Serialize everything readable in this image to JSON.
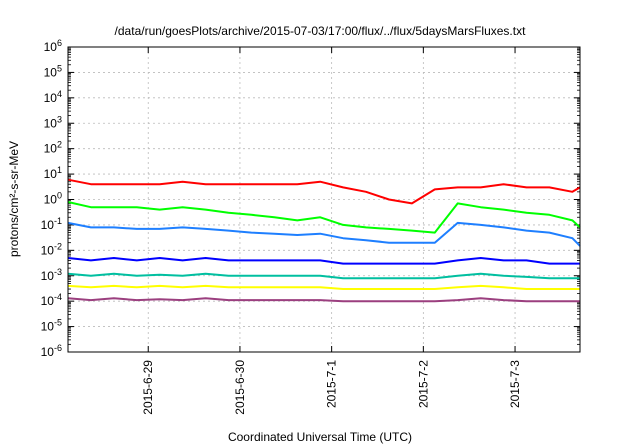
{
  "chart_data": {
    "type": "line",
    "title": "/data/run/goesPlots/archive/2015-07-03/17:00/flux/../flux/5daysMarsFluxes.txt",
    "xlabel": "Coordinated Universal Time (UTC)",
    "ylabel": "protons/cm²-s-sr-MeV",
    "yscale": "log",
    "ylim": [
      1e-06,
      1000000.0
    ],
    "yticks": [
      {
        "value": 1e-06,
        "base": "10",
        "exp": "-6"
      },
      {
        "value": 1e-05,
        "base": "10",
        "exp": "-5"
      },
      {
        "value": 0.0001,
        "base": "10",
        "exp": "-4"
      },
      {
        "value": 0.001,
        "base": "10",
        "exp": "-3"
      },
      {
        "value": 0.01,
        "base": "10",
        "exp": "-2"
      },
      {
        "value": 0.1,
        "base": "10",
        "exp": "-1"
      },
      {
        "value": 1.0,
        "base": "10",
        "exp": "0"
      },
      {
        "value": 10.0,
        "base": "10",
        "exp": "1"
      },
      {
        "value": 100.0,
        "base": "10",
        "exp": "2"
      },
      {
        "value": 1000.0,
        "base": "10",
        "exp": "3"
      },
      {
        "value": 10000.0,
        "base": "10",
        "exp": "4"
      },
      {
        "value": 100000.0,
        "base": "10",
        "exp": "5"
      },
      {
        "value": 1000000.0,
        "base": "10",
        "exp": "6"
      }
    ],
    "xlim": [
      "2015-06-28T03:00",
      "2015-07-03T17:00"
    ],
    "xticks": [
      "2015-6-29",
      "2015-6-30",
      "2015-7-1",
      "2015-7-2",
      "2015-7-3"
    ],
    "grid": true,
    "legend": "none",
    "x": [
      "2015-06-28T03:00",
      "2015-06-28T09:00",
      "2015-06-28T15:00",
      "2015-06-28T21:00",
      "2015-06-29T03:00",
      "2015-06-29T09:00",
      "2015-06-29T15:00",
      "2015-06-29T21:00",
      "2015-06-30T03:00",
      "2015-06-30T09:00",
      "2015-06-30T15:00",
      "2015-06-30T21:00",
      "2015-07-01T03:00",
      "2015-07-01T09:00",
      "2015-07-01T15:00",
      "2015-07-01T21:00",
      "2015-07-02T03:00",
      "2015-07-02T09:00",
      "2015-07-02T15:00",
      "2015-07-02T21:00",
      "2015-07-03T03:00",
      "2015-07-03T09:00",
      "2015-07-03T15:00",
      "2015-07-03T17:00"
    ],
    "series": [
      {
        "color": "#ff0000",
        "values": [
          6,
          4,
          4,
          4,
          4,
          5,
          4,
          4,
          4,
          4,
          4,
          5,
          3,
          2,
          1,
          0.7,
          2.5,
          3,
          3,
          4,
          3,
          3,
          2,
          3
        ]
      },
      {
        "color": "#00ff00",
        "values": [
          0.8,
          0.5,
          0.5,
          0.5,
          0.4,
          0.5,
          0.4,
          0.3,
          0.25,
          0.2,
          0.15,
          0.2,
          0.1,
          0.08,
          0.07,
          0.06,
          0.05,
          0.7,
          0.5,
          0.4,
          0.3,
          0.25,
          0.15,
          0.08
        ]
      },
      {
        "color": "#1e7fff",
        "values": [
          0.12,
          0.08,
          0.08,
          0.07,
          0.07,
          0.08,
          0.07,
          0.06,
          0.05,
          0.045,
          0.04,
          0.045,
          0.03,
          0.025,
          0.02,
          0.02,
          0.02,
          0.12,
          0.1,
          0.08,
          0.06,
          0.05,
          0.03,
          0.015
        ]
      },
      {
        "color": "#0000ff",
        "values": [
          0.005,
          0.004,
          0.005,
          0.004,
          0.005,
          0.004,
          0.005,
          0.004,
          0.004,
          0.004,
          0.004,
          0.004,
          0.003,
          0.003,
          0.003,
          0.003,
          0.003,
          0.004,
          0.005,
          0.004,
          0.004,
          0.003,
          0.003,
          0.003
        ]
      },
      {
        "color": "#00bfa0",
        "values": [
          0.0012,
          0.001,
          0.0012,
          0.001,
          0.0011,
          0.001,
          0.0012,
          0.001,
          0.001,
          0.001,
          0.001,
          0.001,
          0.0008,
          0.0008,
          0.0008,
          0.0008,
          0.0008,
          0.001,
          0.0012,
          0.001,
          0.0009,
          0.0008,
          0.0008,
          0.0008
        ]
      },
      {
        "color": "#ffff00",
        "values": [
          0.0004,
          0.00035,
          0.0004,
          0.00035,
          0.0004,
          0.00035,
          0.0004,
          0.00035,
          0.00035,
          0.00035,
          0.00035,
          0.00035,
          0.0003,
          0.0003,
          0.0003,
          0.0003,
          0.0003,
          0.00035,
          0.0004,
          0.00035,
          0.0003,
          0.0003,
          0.0003,
          0.0003
        ]
      },
      {
        "color": "#9b3f7f",
        "values": [
          0.00013,
          0.00011,
          0.00013,
          0.00011,
          0.00012,
          0.00011,
          0.00013,
          0.00011,
          0.00011,
          0.00011,
          0.00011,
          0.00011,
          0.0001,
          0.0001,
          0.0001,
          0.0001,
          0.0001,
          0.00011,
          0.00013,
          0.00011,
          0.0001,
          0.0001,
          0.0001,
          0.0001
        ]
      }
    ]
  }
}
